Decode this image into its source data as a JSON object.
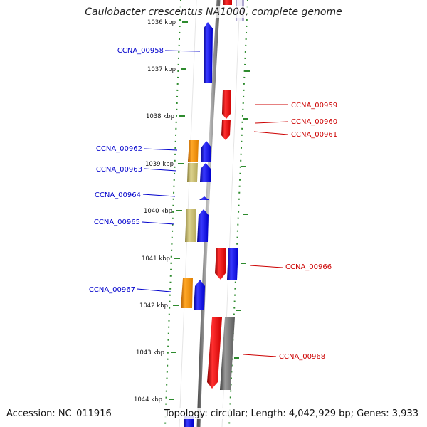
{
  "title": "Caulobacter crescentus NA1000, complete genome",
  "accession": "Accession: NC_011916",
  "summary": "Topology: circular; Length: 4,042,929 bp; Genes: 3,933",
  "colors": {
    "tick": "#2e8b2e",
    "backbone": "#8a8a8a",
    "blue": "#0000ee",
    "red": "#ee0000",
    "orange": "#f08c00",
    "khaki": "#c2b66a",
    "gray": "#707070",
    "label_left": "#0000cc",
    "label_right": "#cc0000"
  },
  "scale": {
    "labels": [
      "1036 kbp",
      "1037 kbp",
      "1038 kbp",
      "1039 kbp",
      "1040 kbp",
      "1041 kbp",
      "1042 kbp",
      "1043 kbp",
      "1044 kbp"
    ]
  },
  "genes": [
    {
      "label": "CCNA_00958",
      "side": "left",
      "strand": "+",
      "color": "blue"
    },
    {
      "label": "CCNA_00959",
      "side": "right",
      "strand": "-",
      "color": "red"
    },
    {
      "label": "CCNA_00960",
      "side": "right",
      "strand": "-",
      "color": "red"
    },
    {
      "label": "CCNA_00961",
      "side": "right",
      "strand": "-",
      "color": "red"
    },
    {
      "label": "CCNA_00962",
      "side": "left",
      "strand": "+",
      "color": "blue"
    },
    {
      "label": "CCNA_00963",
      "side": "left",
      "strand": "+",
      "color": "blue"
    },
    {
      "label": "CCNA_00964",
      "side": "left",
      "strand": "+",
      "color": "blue"
    },
    {
      "label": "CCNA_00965",
      "side": "left",
      "strand": "+",
      "color": "blue"
    },
    {
      "label": "CCNA_00966",
      "side": "right",
      "strand": "-",
      "color": "red"
    },
    {
      "label": "CCNA_00967",
      "side": "left",
      "strand": "+",
      "color": "blue"
    },
    {
      "label": "CCNA_00968",
      "side": "right",
      "strand": "-",
      "color": "red"
    }
  ]
}
